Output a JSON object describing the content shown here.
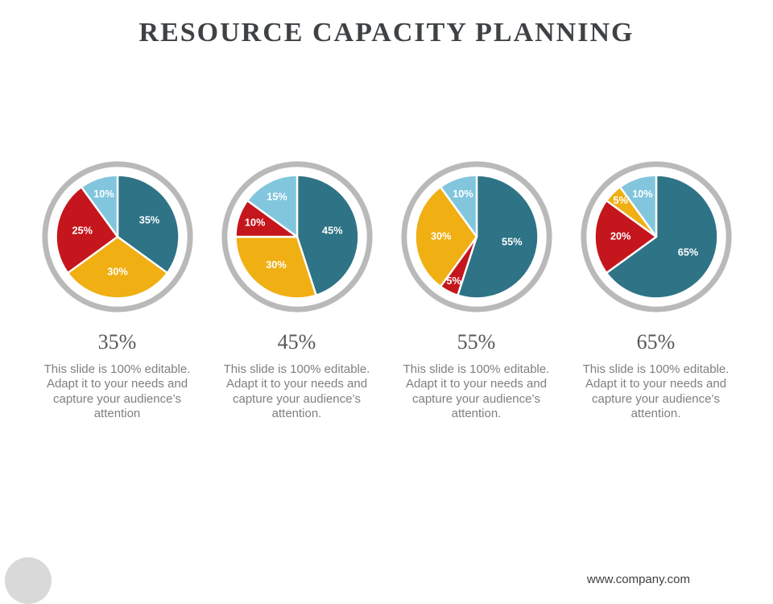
{
  "title": "RESOURCE CAPACITY PLANNING",
  "footer": {
    "website": "www.company.com"
  },
  "colors": {
    "teal": "#2E7386",
    "gold": "#F0AF13",
    "red": "#C4161C",
    "light_blue": "#82C6DE",
    "ring": "#B9B9B9",
    "title_text": "#3F4245",
    "heading_text": "#595959",
    "body_text": "#7F7F7F"
  },
  "chart_data": [
    {
      "type": "pie",
      "heading": "35%",
      "description": "This slide is 100% editable. Adapt it to your needs and capture your audience’s attention",
      "start": "12 o'clock",
      "direction": "clockwise",
      "slices": [
        {
          "label": "35%",
          "value": 35,
          "color": "#2E7386"
        },
        {
          "label": "30%",
          "value": 30,
          "color": "#F0AF13"
        },
        {
          "label": "25%",
          "value": 25,
          "color": "#C4161C"
        },
        {
          "label": "10%",
          "value": 10,
          "color": "#82C6DE"
        }
      ]
    },
    {
      "type": "pie",
      "heading": "45%",
      "description": "This slide is 100% editable. Adapt it to your needs and capture your audience’s attention.",
      "start": "12 o'clock",
      "direction": "clockwise",
      "slices": [
        {
          "label": "45%",
          "value": 45,
          "color": "#2E7386"
        },
        {
          "label": "30%",
          "value": 30,
          "color": "#F0AF13"
        },
        {
          "label": "10%",
          "value": 10,
          "color": "#C4161C"
        },
        {
          "label": "15%",
          "value": 15,
          "color": "#82C6DE"
        }
      ]
    },
    {
      "type": "pie",
      "heading": "55%",
      "description": "This slide is 100% editable. Adapt it to your needs and capture your audience’s attention.",
      "start": "12 o'clock",
      "direction": "clockwise",
      "slices": [
        {
          "label": "55%",
          "value": 55,
          "color": "#2E7386"
        },
        {
          "label": "5%",
          "value": 5,
          "color": "#C4161C"
        },
        {
          "label": "30%",
          "value": 30,
          "color": "#F0AF13"
        },
        {
          "label": "10%",
          "value": 10,
          "color": "#82C6DE"
        }
      ]
    },
    {
      "type": "pie",
      "heading": "65%",
      "description": "This slide is 100% editable. Adapt it to your needs and capture your audience’s attention.",
      "start": "12 o'clock",
      "direction": "clockwise",
      "slices": [
        {
          "label": "65%",
          "value": 65,
          "color": "#2E7386"
        },
        {
          "label": "20%",
          "value": 20,
          "color": "#C4161C"
        },
        {
          "label": "5%",
          "value": 5,
          "color": "#F0AF13"
        },
        {
          "label": "10%",
          "value": 10,
          "color": "#82C6DE"
        }
      ]
    }
  ]
}
